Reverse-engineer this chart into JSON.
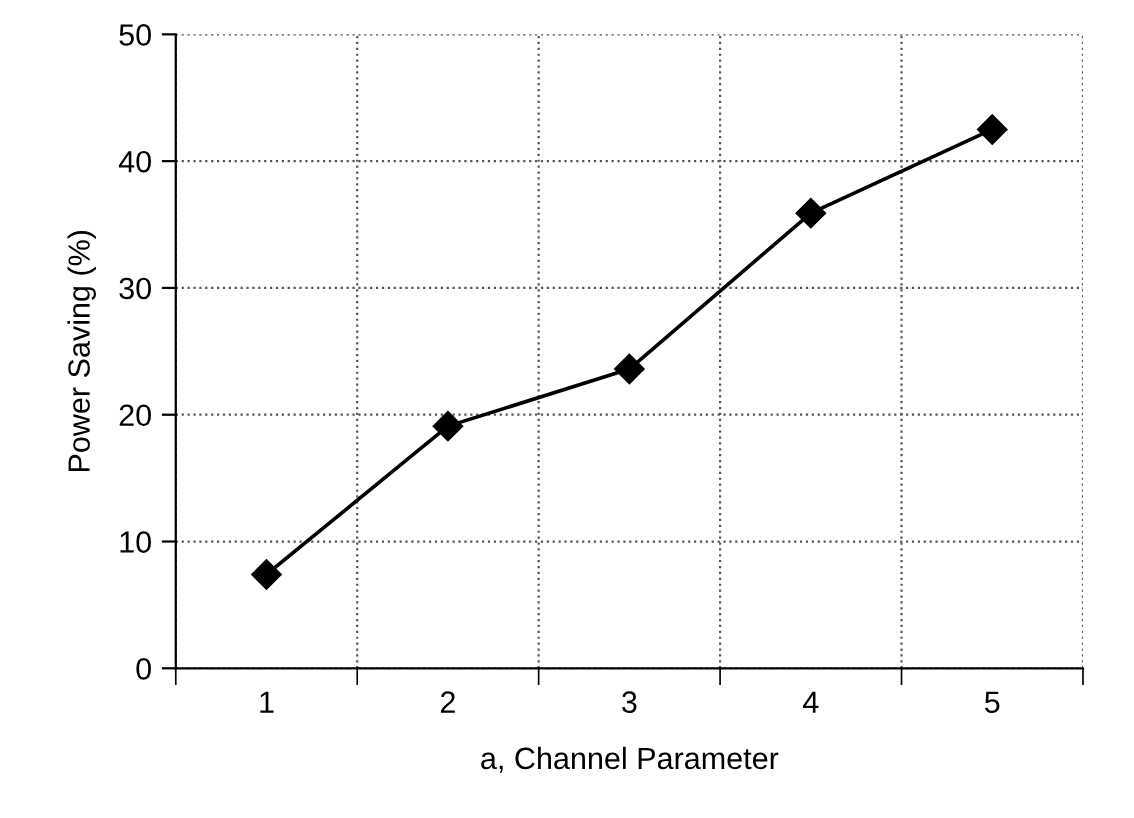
{
  "chart_data": {
    "type": "line",
    "xlabel": "a, Channel Parameter",
    "ylabel": "Power Saving (%)",
    "categories": [
      "1",
      "2",
      "3",
      "4",
      "5"
    ],
    "series": [
      {
        "color": "#000000",
        "values": [
          7.4,
          19.1,
          23.6,
          35.9,
          42.5
        ]
      }
    ],
    "ylim": [
      0,
      50
    ],
    "yticks": [
      0,
      10,
      20,
      30,
      40,
      50
    ],
    "grid": true,
    "marker": "diamond",
    "line_style": "solid"
  }
}
